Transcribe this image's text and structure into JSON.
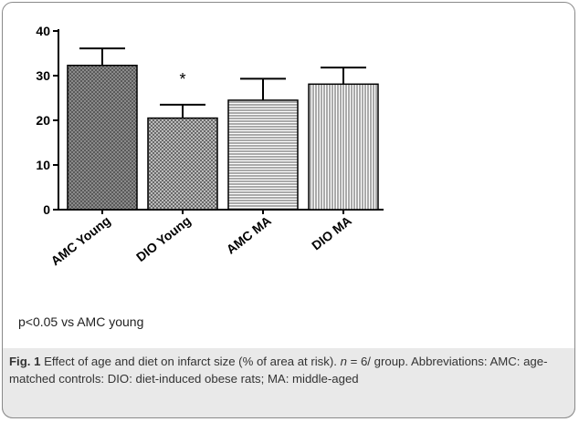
{
  "chart_data": {
    "type": "bar",
    "categories": [
      "AMC Young",
      "DIO Young",
      "AMC MA",
      "DIO MA"
    ],
    "values": [
      32.3,
      20.5,
      24.5,
      28.1
    ],
    "errors": [
      3.8,
      3.0,
      4.8,
      3.7
    ],
    "ylim": [
      0,
      40
    ],
    "yticks": [
      0,
      10,
      20,
      30,
      40
    ],
    "annotations": [
      {
        "category": "DIO Young",
        "text": "*"
      }
    ],
    "grid": false
  },
  "footnote": "p<0.05 vs AMC young",
  "caption": {
    "fig_label": "Fig. 1",
    "text_1": " Effect of age and diet on infarct size (% of area at risk). ",
    "n_text": "n",
    "text_2": " = 6/ group. Abbreviations: AMC: age-matched controls: DIO: diet-induced obese rats; MA: middle-aged"
  }
}
